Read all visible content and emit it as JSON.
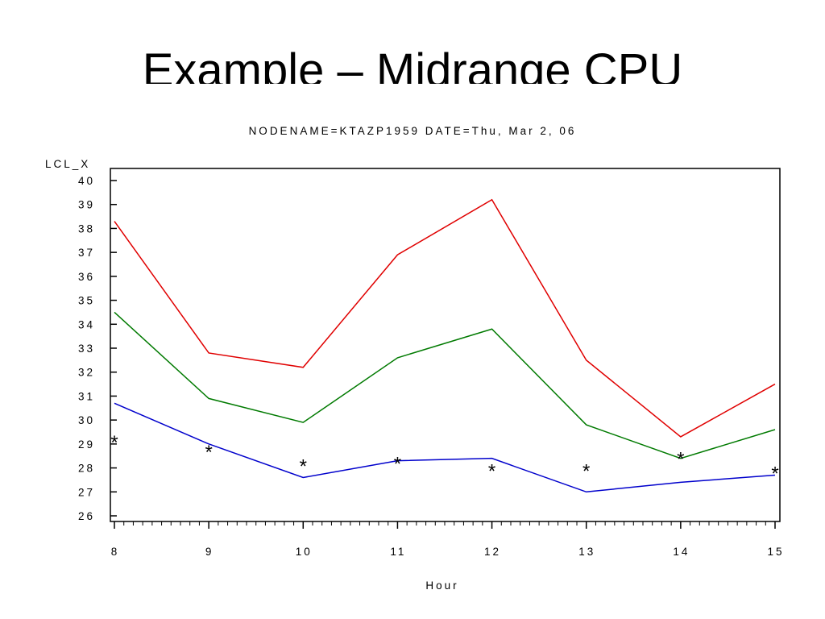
{
  "slide": {
    "title": "Example – Midrange CPU"
  },
  "chart_data": {
    "type": "line",
    "title": "NODENAME=KTAZP1959 DATE=Thu, Mar 2, 06",
    "xlabel": "Hour",
    "ylabel": "LCL_X",
    "x": [
      8,
      9,
      10,
      11,
      12,
      13,
      14,
      15
    ],
    "xlim": [
      8,
      15
    ],
    "ylim": [
      26,
      40
    ],
    "x_ticks": [
      8,
      9,
      10,
      11,
      12,
      13,
      14,
      15
    ],
    "y_ticks": [
      26,
      27,
      28,
      29,
      30,
      31,
      32,
      33,
      34,
      35,
      36,
      37,
      38,
      39,
      40
    ],
    "grid": false,
    "series": [
      {
        "color": "#e00000",
        "style": "line",
        "values": [
          38.3,
          32.8,
          32.2,
          36.9,
          39.2,
          32.5,
          29.3,
          31.5
        ]
      },
      {
        "color": "#007a00",
        "style": "line",
        "values": [
          34.5,
          30.9,
          29.9,
          32.6,
          33.8,
          29.8,
          28.4,
          29.6
        ]
      },
      {
        "color": "#0000cc",
        "style": "line",
        "values": [
          30.7,
          29.0,
          27.6,
          28.3,
          28.4,
          27.0,
          27.4,
          27.7
        ]
      },
      {
        "color": "#000000",
        "style": "marker",
        "marker": "*",
        "values": [
          29.1,
          28.7,
          28.1,
          28.2,
          27.9,
          27.9,
          28.4,
          27.8
        ]
      }
    ]
  }
}
